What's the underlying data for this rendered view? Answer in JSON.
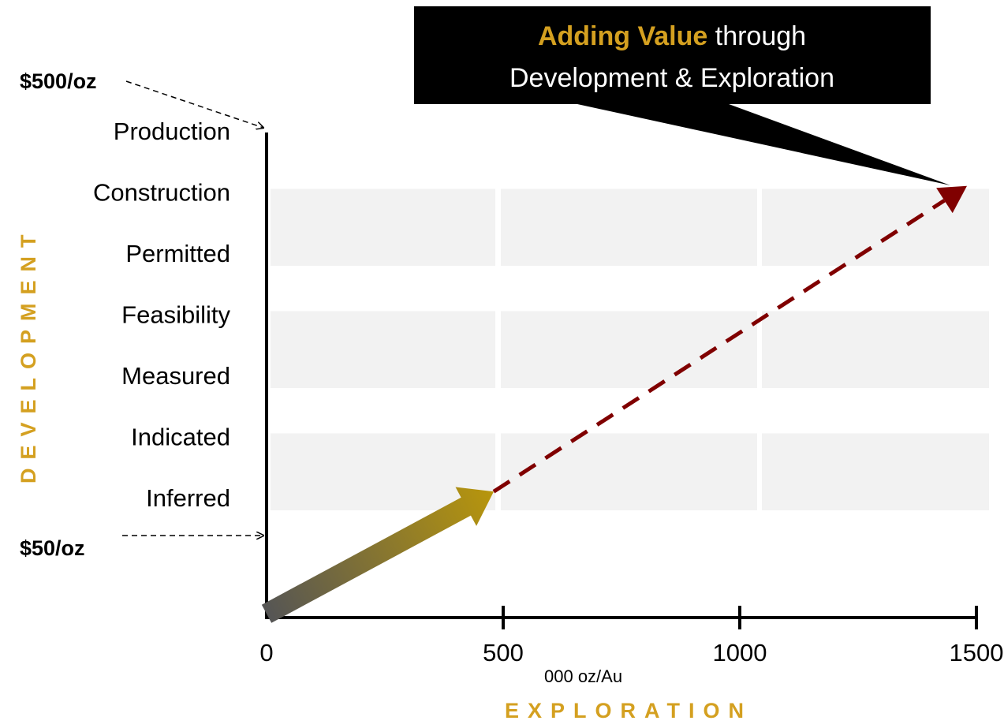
{
  "chart_data": {
    "type": "line",
    "x_axis": {
      "title": "EXPLORATION",
      "unit_label": "000 oz/Au",
      "ticks": [
        0,
        500,
        1000,
        1500
      ],
      "range": [
        0,
        1500
      ]
    },
    "y_axis": {
      "title": "DEVELOPMENT",
      "categories": [
        "Inferred",
        "Indicated",
        "Measured",
        "Feasibility",
        "Permitted",
        "Construction",
        "Production"
      ]
    },
    "price_labels": {
      "top": "$500/oz",
      "bottom": "$50/oz"
    },
    "callout": {
      "highlight": "Adding Value",
      "rest_line1": " through",
      "line2": "Development & Exploration"
    },
    "series": [
      {
        "x": [
          0,
          480
        ],
        "y_level": [
          -1.9,
          0.1
        ],
        "style": "solid-gradient-arrow"
      },
      {
        "x": [
          480,
          1480
        ],
        "y_level": [
          0.1,
          5.1
        ],
        "style": "dashed-arrow"
      }
    ],
    "colors": {
      "accent": "#d4a020",
      "dashed": "#800000",
      "band": "#f2f2f2",
      "arrow_start": "#555555",
      "arrow_end": "#b8960c"
    }
  }
}
